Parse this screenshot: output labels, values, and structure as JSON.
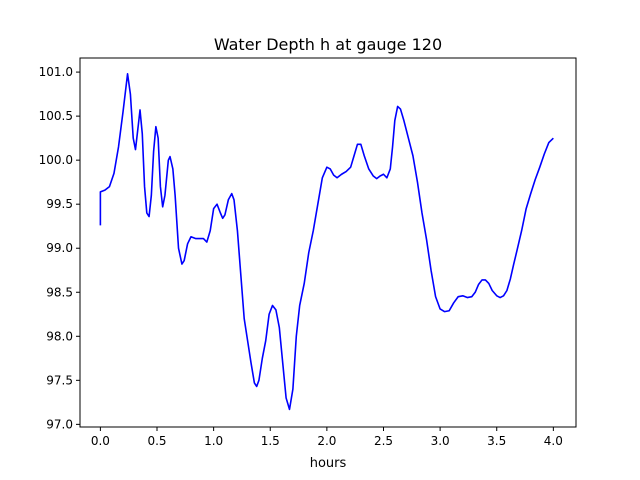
{
  "chart_data": {
    "type": "line",
    "title": "Water Depth h at gauge 120",
    "xlabel": "hours",
    "ylabel": "",
    "xlim": [
      -0.18,
      4.2
    ],
    "ylim": [
      96.97,
      101.16
    ],
    "grid": false,
    "x_ticks": [
      0.0,
      0.5,
      1.0,
      1.5,
      2.0,
      2.5,
      3.0,
      3.5,
      4.0
    ],
    "x_tick_labels": [
      "0.0",
      "0.5",
      "1.0",
      "1.5",
      "2.0",
      "2.5",
      "3.0",
      "3.5",
      "4.0"
    ],
    "y_ticks": [
      97.0,
      97.5,
      98.0,
      98.5,
      99.0,
      99.5,
      100.0,
      100.5,
      101.0
    ],
    "y_tick_labels": [
      "97.0",
      "97.5",
      "98.0",
      "98.5",
      "99.0",
      "99.5",
      "100.0",
      "100.5",
      "101.0"
    ],
    "series": [
      {
        "color": "#0000ff",
        "points": [
          [
            0.0,
            99.26
          ],
          [
            0.0,
            99.64
          ],
          [
            0.04,
            99.66
          ],
          [
            0.08,
            99.7
          ],
          [
            0.12,
            99.85
          ],
          [
            0.16,
            100.15
          ],
          [
            0.2,
            100.55
          ],
          [
            0.24,
            100.98
          ],
          [
            0.265,
            100.75
          ],
          [
            0.29,
            100.25
          ],
          [
            0.31,
            100.12
          ],
          [
            0.335,
            100.4
          ],
          [
            0.35,
            100.57
          ],
          [
            0.37,
            100.3
          ],
          [
            0.39,
            99.7
          ],
          [
            0.41,
            99.4
          ],
          [
            0.43,
            99.36
          ],
          [
            0.45,
            99.6
          ],
          [
            0.47,
            100.1
          ],
          [
            0.49,
            100.38
          ],
          [
            0.51,
            100.25
          ],
          [
            0.53,
            99.7
          ],
          [
            0.55,
            99.47
          ],
          [
            0.57,
            99.6
          ],
          [
            0.6,
            100.0
          ],
          [
            0.615,
            100.04
          ],
          [
            0.64,
            99.9
          ],
          [
            0.66,
            99.6
          ],
          [
            0.69,
            99.0
          ],
          [
            0.72,
            98.82
          ],
          [
            0.74,
            98.86
          ],
          [
            0.77,
            99.05
          ],
          [
            0.8,
            99.13
          ],
          [
            0.84,
            99.11
          ],
          [
            0.88,
            99.11
          ],
          [
            0.91,
            99.11
          ],
          [
            0.94,
            99.07
          ],
          [
            0.97,
            99.2
          ],
          [
            1.0,
            99.45
          ],
          [
            1.03,
            99.5
          ],
          [
            1.06,
            99.4
          ],
          [
            1.08,
            99.34
          ],
          [
            1.1,
            99.38
          ],
          [
            1.13,
            99.55
          ],
          [
            1.16,
            99.62
          ],
          [
            1.18,
            99.55
          ],
          [
            1.21,
            99.2
          ],
          [
            1.24,
            98.7
          ],
          [
            1.27,
            98.2
          ],
          [
            1.3,
            97.95
          ],
          [
            1.33,
            97.7
          ],
          [
            1.36,
            97.47
          ],
          [
            1.38,
            97.43
          ],
          [
            1.4,
            97.5
          ],
          [
            1.43,
            97.75
          ],
          [
            1.46,
            97.95
          ],
          [
            1.49,
            98.25
          ],
          [
            1.52,
            98.35
          ],
          [
            1.55,
            98.3
          ],
          [
            1.58,
            98.1
          ],
          [
            1.61,
            97.7
          ],
          [
            1.64,
            97.3
          ],
          [
            1.67,
            97.17
          ],
          [
            1.7,
            97.4
          ],
          [
            1.73,
            98.0
          ],
          [
            1.76,
            98.35
          ],
          [
            1.8,
            98.6
          ],
          [
            1.84,
            98.95
          ],
          [
            1.88,
            99.2
          ],
          [
            1.92,
            99.5
          ],
          [
            1.96,
            99.8
          ],
          [
            2.0,
            99.92
          ],
          [
            2.03,
            99.9
          ],
          [
            2.06,
            99.83
          ],
          [
            2.09,
            99.8
          ],
          [
            2.13,
            99.84
          ],
          [
            2.17,
            99.87
          ],
          [
            2.21,
            99.92
          ],
          [
            2.24,
            100.05
          ],
          [
            2.27,
            100.18
          ],
          [
            2.3,
            100.18
          ],
          [
            2.33,
            100.05
          ],
          [
            2.37,
            99.9
          ],
          [
            2.41,
            99.82
          ],
          [
            2.44,
            99.79
          ],
          [
            2.47,
            99.82
          ],
          [
            2.5,
            99.84
          ],
          [
            2.53,
            99.8
          ],
          [
            2.56,
            99.9
          ],
          [
            2.58,
            100.15
          ],
          [
            2.6,
            100.45
          ],
          [
            2.625,
            100.61
          ],
          [
            2.65,
            100.58
          ],
          [
            2.68,
            100.45
          ],
          [
            2.72,
            100.25
          ],
          [
            2.76,
            100.05
          ],
          [
            2.8,
            99.75
          ],
          [
            2.84,
            99.4
          ],
          [
            2.88,
            99.1
          ],
          [
            2.92,
            98.75
          ],
          [
            2.96,
            98.45
          ],
          [
            3.0,
            98.31
          ],
          [
            3.04,
            98.28
          ],
          [
            3.08,
            98.29
          ],
          [
            3.12,
            98.38
          ],
          [
            3.16,
            98.45
          ],
          [
            3.2,
            98.46
          ],
          [
            3.24,
            98.44
          ],
          [
            3.28,
            98.45
          ],
          [
            3.31,
            98.5
          ],
          [
            3.34,
            98.59
          ],
          [
            3.37,
            98.64
          ],
          [
            3.4,
            98.64
          ],
          [
            3.43,
            98.6
          ],
          [
            3.46,
            98.52
          ],
          [
            3.5,
            98.46
          ],
          [
            3.53,
            98.44
          ],
          [
            3.56,
            98.46
          ],
          [
            3.59,
            98.52
          ],
          [
            3.62,
            98.65
          ],
          [
            3.65,
            98.82
          ],
          [
            3.68,
            98.98
          ],
          [
            3.72,
            99.2
          ],
          [
            3.76,
            99.45
          ],
          [
            3.8,
            99.62
          ],
          [
            3.84,
            99.78
          ],
          [
            3.88,
            99.92
          ],
          [
            3.92,
            100.07
          ],
          [
            3.96,
            100.2
          ],
          [
            4.0,
            100.25
          ]
        ]
      }
    ]
  }
}
